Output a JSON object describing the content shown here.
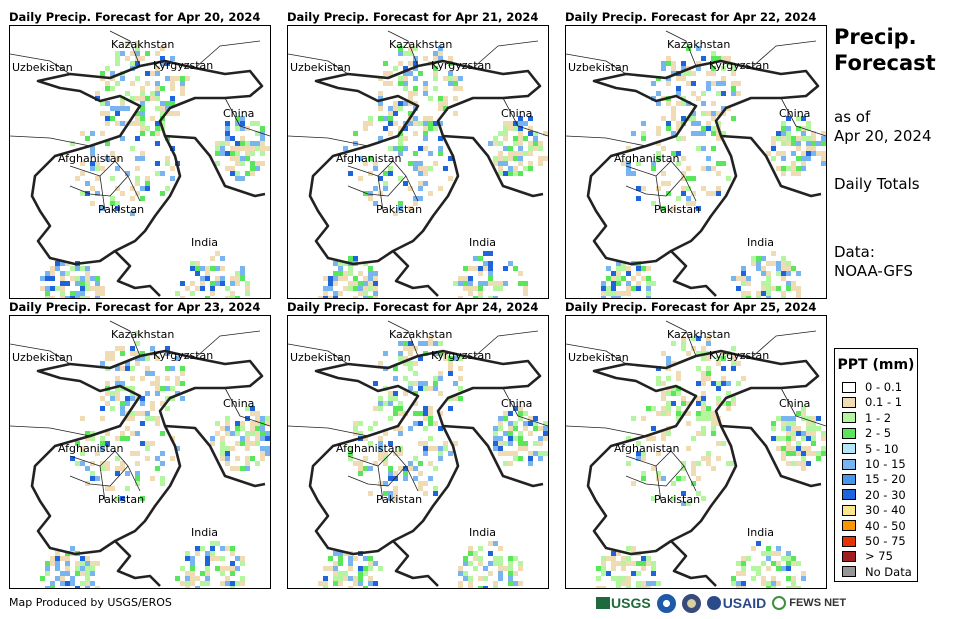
{
  "panels": [
    {
      "title": "Daily Precip. Forecast for Apr 20, 2024"
    },
    {
      "title": "Daily Precip. Forecast for Apr 21, 2024"
    },
    {
      "title": "Daily Precip. Forecast for Apr 22, 2024"
    },
    {
      "title": "Daily Precip. Forecast for Apr 23, 2024"
    },
    {
      "title": "Daily Precip. Forecast for Apr 24, 2024"
    },
    {
      "title": "Daily Precip. Forecast for Apr 25, 2024"
    }
  ],
  "country_labels": {
    "kazakhstan": "Kazakhstan",
    "uzbekistan": "Uzbekistan",
    "kyrgyzstan": "Kyrgyzstan",
    "china": "China",
    "afghanistan": "Afghanistan",
    "pakistan": "Pakistan",
    "india": "India"
  },
  "side": {
    "title_line1": "Precip.",
    "title_line2": "Forecast",
    "asof_line1": "as of",
    "asof_line2": "Apr 20, 2024",
    "totals": "Daily Totals",
    "data_line1": "Data:",
    "data_line2": "NOAA-GFS"
  },
  "legend": {
    "title": "PPT (mm)",
    "items": [
      {
        "label": "0 - 0.1",
        "color": "#ffffff"
      },
      {
        "label": "0.1 - 1",
        "color": "#f0dcb4"
      },
      {
        "label": "1 - 2",
        "color": "#b4f5a0"
      },
      {
        "label": "2 - 5",
        "color": "#5ae65a"
      },
      {
        "label": "5 - 10",
        "color": "#b4e6fa"
      },
      {
        "label": "10 - 15",
        "color": "#78b4f0"
      },
      {
        "label": "15 - 20",
        "color": "#4696eb"
      },
      {
        "label": "20 - 30",
        "color": "#1e64dc"
      },
      {
        "label": "30 - 40",
        "color": "#fae68c"
      },
      {
        "label": "40 - 50",
        "color": "#fa9600"
      },
      {
        "label": "50 - 75",
        "color": "#e63200"
      },
      {
        "label": "> 75",
        "color": "#a01e1e"
      },
      {
        "label": "No Data",
        "color": "#969696"
      }
    ]
  },
  "footer": {
    "credit": "Map Produced by USGS/EROS",
    "logos": [
      "USGS",
      "NOAA",
      "USAID",
      "FEWS NET"
    ]
  }
}
